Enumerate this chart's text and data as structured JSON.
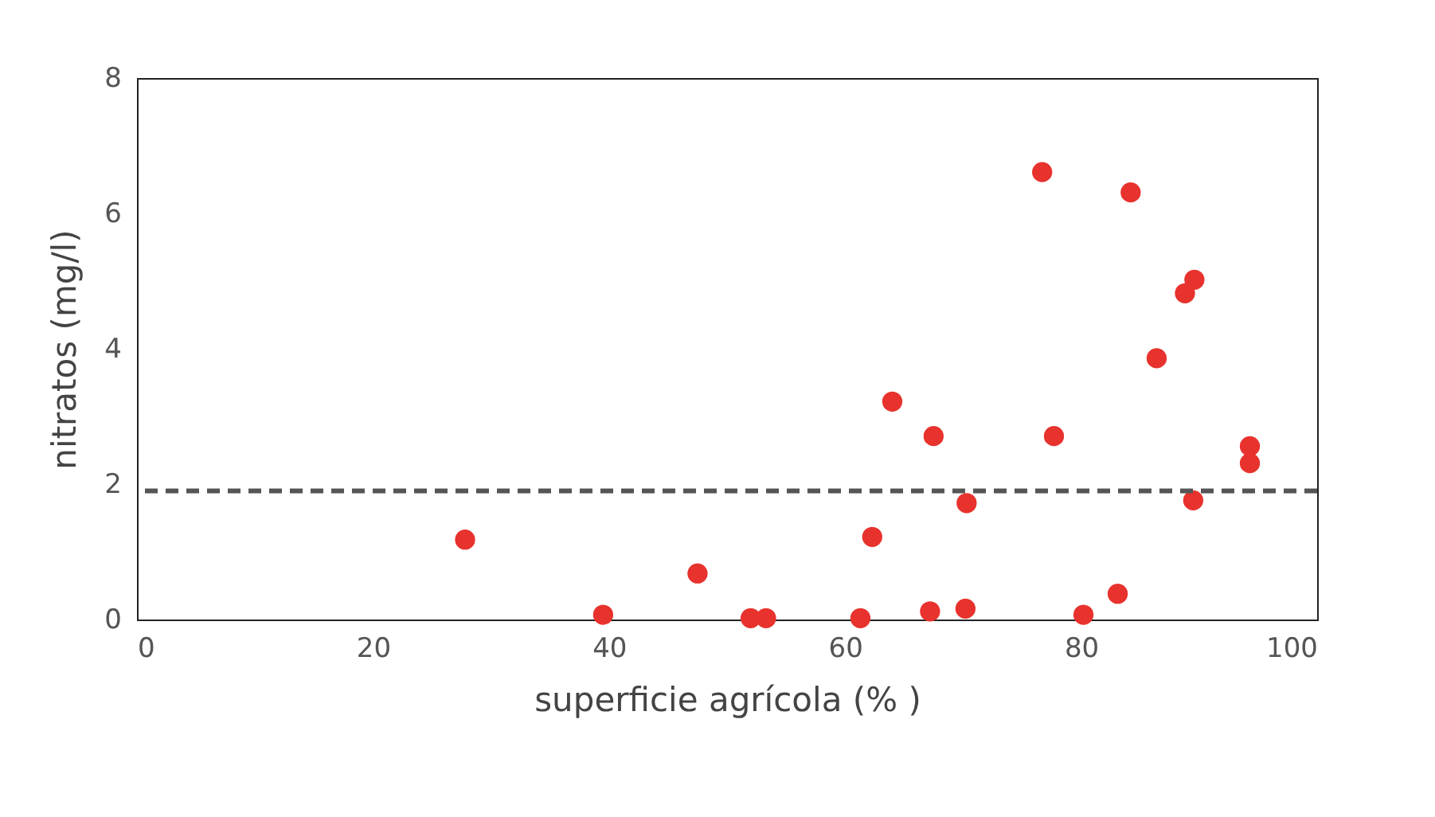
{
  "chart_data": {
    "type": "scatter",
    "xlabel": "superficie agrícola (% )",
    "ylabel": "nitratos (mg/l)",
    "x": [
      27.8,
      39.5,
      47.5,
      52.0,
      53.3,
      61.3,
      62.3,
      64.0,
      67.2,
      67.5,
      70.2,
      70.3,
      76.7,
      77.7,
      80.2,
      83.1,
      84.2,
      86.4,
      88.8,
      89.6,
      89.5,
      94.3,
      94.3
    ],
    "series": [
      {
        "color": "#e8322d",
        "values": [
          1.18,
          0.07,
          0.68,
          0.02,
          0.02,
          0.02,
          1.22,
          3.22,
          0.12,
          2.71,
          0.16,
          1.72,
          6.61,
          2.71,
          0.07,
          0.38,
          6.31,
          3.86,
          4.82,
          5.02,
          1.76,
          2.56,
          2.31
        ]
      }
    ],
    "xlim": [
      0,
      100
    ],
    "xticks": [
      0,
      20,
      40,
      60,
      80,
      100
    ],
    "ylim": [
      0,
      8
    ],
    "yticks": [
      0,
      2,
      4,
      6,
      8
    ],
    "ref_lines": [
      {
        "axis": "y",
        "value": 1.9,
        "color": "#555555",
        "line_style": "dashed"
      }
    ],
    "marker": "circle",
    "grid": false
  }
}
